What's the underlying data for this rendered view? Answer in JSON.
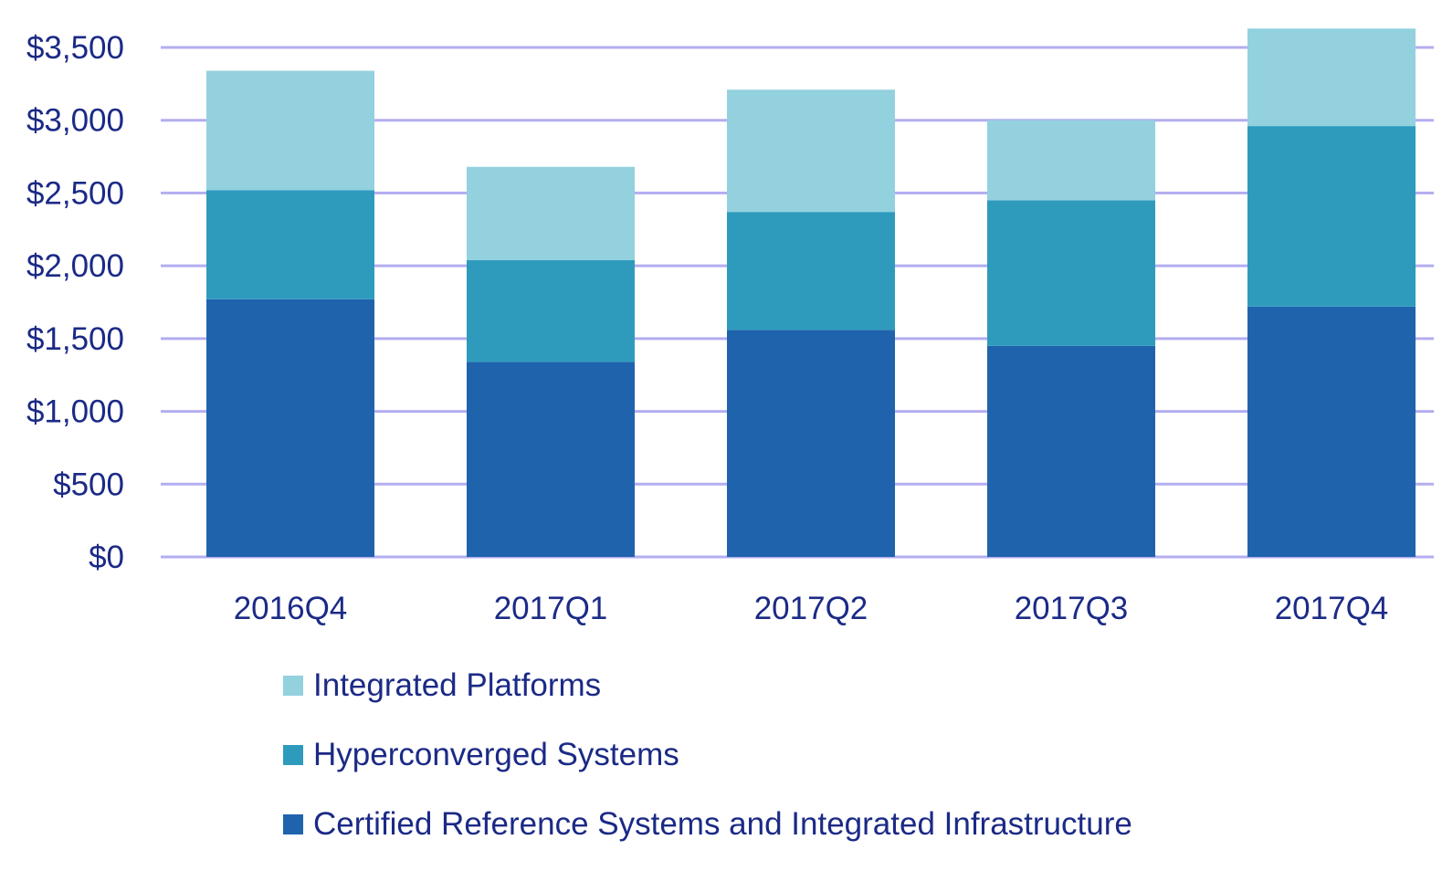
{
  "chart_data": {
    "type": "bar",
    "stacked": true,
    "categories": [
      "2016Q4",
      "2017Q1",
      "2017Q2",
      "2017Q3",
      "2017Q4"
    ],
    "series": [
      {
        "name": "Certified Reference Systems and Integrated Infrastructure",
        "color": "#1f63ad",
        "values": [
          1770,
          1340,
          1560,
          1450,
          1720
        ]
      },
      {
        "name": "Hyperconverged Systems",
        "color": "#2e9bbd",
        "values": [
          750,
          700,
          810,
          1000,
          1240
        ]
      },
      {
        "name": "Integrated Platforms",
        "color": "#93d1df",
        "values": [
          820,
          640,
          840,
          550,
          670
        ]
      }
    ],
    "yticks": [
      "$0",
      "$500",
      "$1,000",
      "$1,500",
      "$2,000",
      "$2,500",
      "$3,000",
      "$3,500"
    ],
    "ylim": [
      0,
      3500
    ],
    "grid": true,
    "legend_position": "bottom",
    "title": "",
    "xlabel": "",
    "ylabel": "",
    "colors": {
      "axis_text": "#1b2a86",
      "gridline": "#b3aef0"
    }
  }
}
